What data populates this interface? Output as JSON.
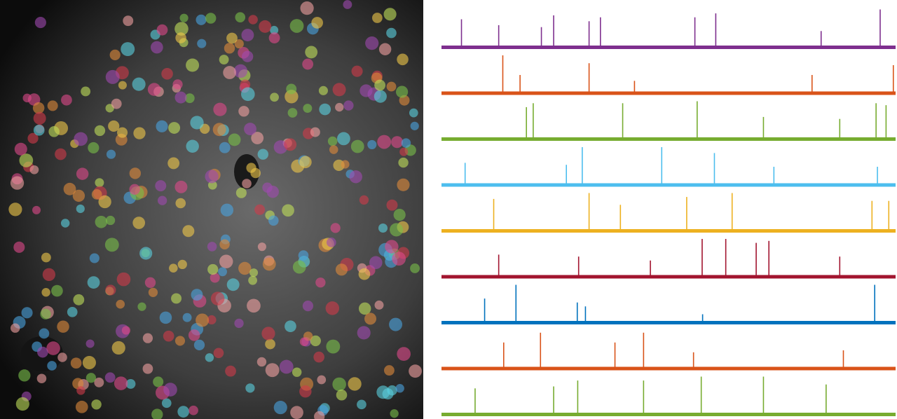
{
  "chart_data": {
    "type": "spikes",
    "xlim": [
      0,
      100
    ],
    "ylim": [
      0,
      1
    ],
    "series": [
      {
        "color": "#7e2f8e",
        "x": [
          4.4,
          12.6,
          22,
          24.7,
          32.5,
          35,
          55.8,
          60.4,
          83.6,
          96.6
        ],
        "values": [
          0.75,
          0.6,
          0.55,
          0.85,
          0.7,
          0.8,
          0.8,
          0.9,
          0.45,
          1.0
        ]
      },
      {
        "color": "#d95319",
        "x": [
          13.5,
          17.3,
          32.5,
          42.5,
          81.6,
          99.5
        ],
        "values": [
          1.0,
          0.5,
          0.8,
          0.35,
          0.5,
          0.75
        ]
      },
      {
        "color": "#77ac30",
        "x": [
          18.7,
          20.2,
          39.9,
          56.3,
          70.9,
          87.7,
          95.7,
          97.9
        ],
        "values": [
          0.85,
          0.95,
          0.95,
          1.0,
          0.6,
          0.55,
          0.95,
          0.9
        ]
      },
      {
        "color": "#4dbeee",
        "x": [
          5.2,
          27.5,
          31,
          48.5,
          60.1,
          73.2,
          96
        ],
        "values": [
          0.6,
          0.55,
          1.0,
          1.0,
          0.85,
          0.5,
          0.5
        ]
      },
      {
        "color": "#edb120",
        "x": [
          11.5,
          32.5,
          39.4,
          54,
          64,
          94.8,
          98.5
        ],
        "values": [
          0.85,
          1.0,
          0.7,
          0.9,
          1.0,
          0.8,
          0.8
        ]
      },
      {
        "color": "#a2142f",
        "x": [
          12.6,
          30.2,
          46,
          57.4,
          62.6,
          69.3,
          72.1,
          87.7
        ],
        "values": [
          0.6,
          0.55,
          0.45,
          1.0,
          1.0,
          0.9,
          0.95,
          0.55
        ]
      },
      {
        "color": "#0072bd",
        "x": [
          9.5,
          16.4,
          29.9,
          31.7,
          57.5,
          95.4
        ],
        "values": [
          0.65,
          1.0,
          0.55,
          0.45,
          0.25,
          1.0
        ]
      },
      {
        "color": "#d95319",
        "x": [
          13.7,
          21.8,
          38.2,
          44.5,
          55.5,
          88.5
        ],
        "values": [
          0.7,
          0.95,
          0.7,
          0.95,
          0.45,
          0.5
        ]
      },
      {
        "color": "#77ac30",
        "x": [
          7.4,
          24.7,
          30,
          44.5,
          57.2,
          70.9,
          84.7
        ],
        "values": [
          0.7,
          0.75,
          0.9,
          0.9,
          1.0,
          1.0,
          0.8
        ]
      }
    ]
  }
}
